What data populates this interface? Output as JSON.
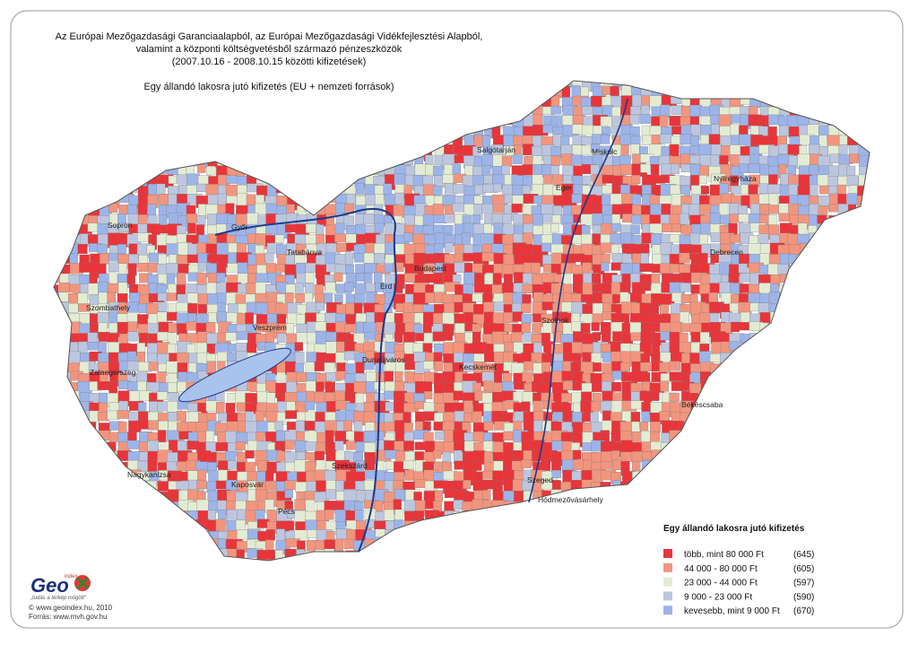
{
  "header": {
    "lines": [
      "Az Európai Mezőgazdasági Garanciaalapból, az Európai Mezőgazdasági Vidékfejlesztési Alapból,",
      "valamint a központi költségvetésből származó pénzeszközök",
      "(2007.10.16 - 2008.10.15 közötti kifizetések)"
    ],
    "subtitle": "Egy állandó lakosra jutó kifizetés (EU + nemzeti források)"
  },
  "map": {
    "cities": [
      "Sopron",
      "Győr",
      "Tatabánya",
      "Budapest",
      "Érd",
      "Szombathely",
      "Veszprém",
      "Zalaegerszeg",
      "Dunaújváros",
      "Kecskemét",
      "Szolnok",
      "Salgótarján",
      "Miskolc",
      "Eger",
      "Nyíregyháza",
      "Debrecen",
      "Békéscsaba",
      "Hódmezővásárhely",
      "Szeged",
      "Szekszárd",
      "Kaposvár",
      "Nagykanizsa",
      "Pécs"
    ]
  },
  "legend": {
    "title": "Egy állandó lakosra jutó kifizetés",
    "items": [
      {
        "label": "több, mint 80 000 Ft",
        "count": "(645)",
        "color": "#e8353a"
      },
      {
        "label": "44 000 - 80 000 Ft",
        "count": "(605)",
        "color": "#f2957e"
      },
      {
        "label": "23 000 - 44 000 Ft",
        "count": "(597)",
        "color": "#e3ecd3"
      },
      {
        "label": "9 000 - 23 000 Ft",
        "count": "(590)",
        "color": "#bcc6de"
      },
      {
        "label": "kevesebb, mint 9 000 Ft",
        "count": "(670)",
        "color": "#9db4e8"
      }
    ]
  },
  "logo": {
    "name": "Geo",
    "sub": "index",
    "slogan": "„tudás a térkép mögött\"",
    "copyright": "© www.geoindex.hu, 2010",
    "source": "Forrás: www.mvh.gov.hu"
  }
}
